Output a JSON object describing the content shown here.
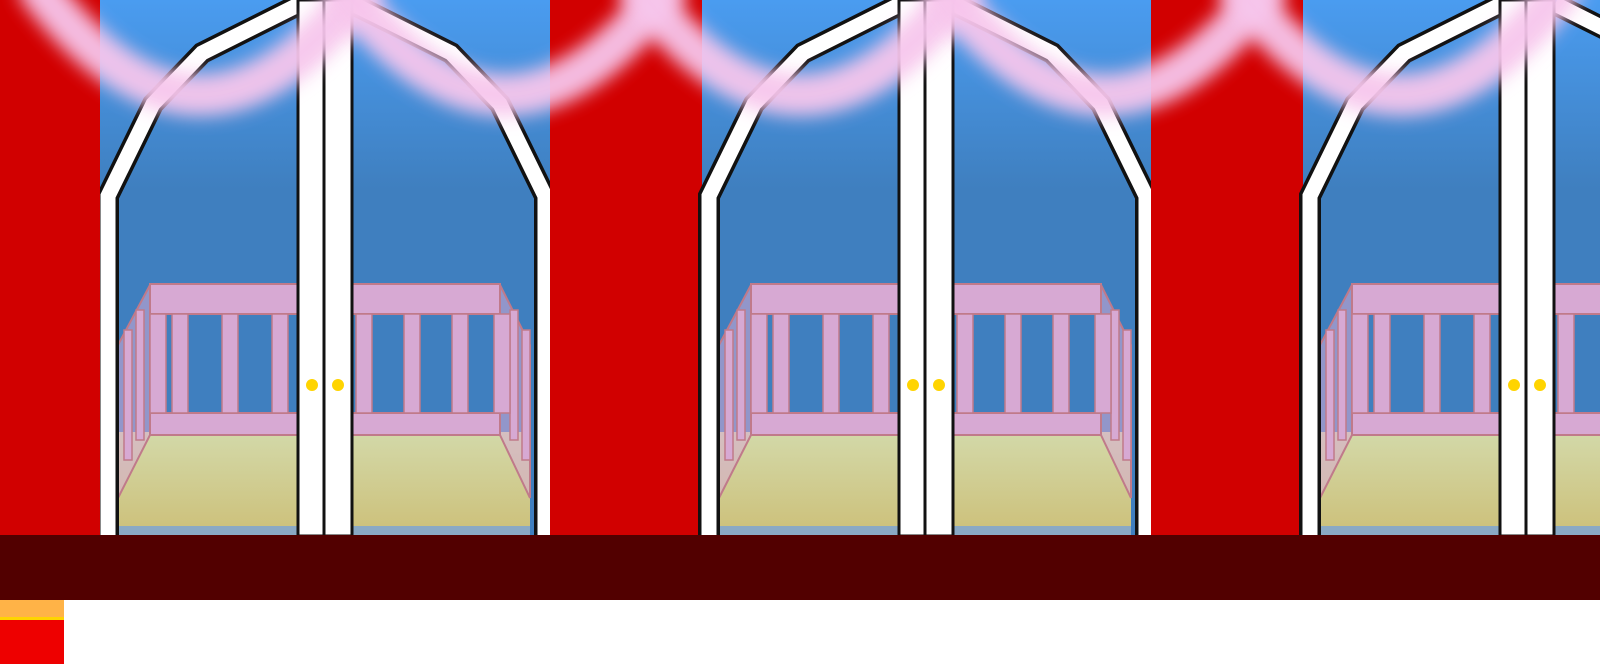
{
  "scene": {
    "panel_count": 3,
    "colors": {
      "sky": "#3f7fbf",
      "sky_top": "#4a9cf0",
      "bunting": "#f7c6ec",
      "curtain": "#d10000",
      "frame": "#ffffff",
      "outline": "#111111",
      "railing_fill": "#d7a9d3",
      "railing_edge": "#c07a8a",
      "floor_light": "#d3d9a9",
      "floor_dark": "#cdc27d",
      "floor_edge": "#8aa9c4",
      "knob": "#ffd400",
      "stage": "#520000"
    }
  },
  "hud": {
    "swatch_top_color": "#ffb347",
    "swatch_bottom_color": "#ee0000",
    "swatch_stripe_color": "#ffd400"
  }
}
